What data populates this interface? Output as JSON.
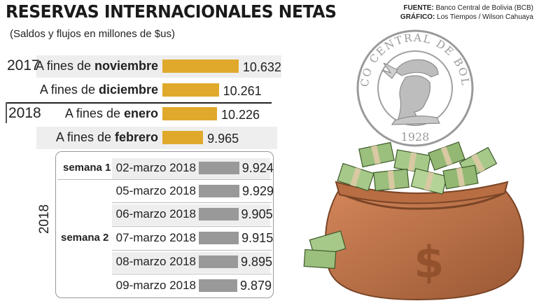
{
  "header": {
    "title": "RESERVAS INTERNACIONALES NETAS",
    "subtitle": "(Saldos y flujos en millones de $us)",
    "fuente_label": "FUENTE:",
    "fuente_value": "Banco Central de Bolivia (BCB)",
    "grafico_label": "GRÁFICO:",
    "grafico_value": "Los Tiempos / Wilson Cahuaya"
  },
  "seal": {
    "text": "BANCO CENTRAL DE BOLIVIA",
    "year": "1928"
  },
  "colors": {
    "monthly_bar": "#e0a92b",
    "daily_bar": "#999999",
    "band": "#eeeeee"
  },
  "chart_data": {
    "type": "bar",
    "orientation": "horizontal",
    "subtitle": "(Saldos y flujos en millones de $us)",
    "monthly": [
      {
        "year": "2017",
        "prefix": "A fines de",
        "month": "noviembre",
        "value": 10.632,
        "label": "10.632"
      },
      {
        "year": "",
        "prefix": "A fines de",
        "month": "diciembre",
        "value": 10.261,
        "label": "10.261"
      },
      {
        "year": "2018",
        "prefix": "A fines de",
        "month": "enero",
        "value": 10.226,
        "label": "10.226"
      },
      {
        "year": "",
        "prefix": "A fines de",
        "month": "febrero",
        "value": 9.965,
        "label": "9.965"
      }
    ],
    "daily_year": "2018",
    "daily": [
      {
        "week": "semana 1",
        "date": "02-marzo 2018",
        "value": 9.924,
        "label": "9.924"
      },
      {
        "week": "",
        "date": "05-marzo 2018",
        "value": 9.929,
        "label": "9.929"
      },
      {
        "week": "",
        "date": "06-marzo 2018",
        "value": 9.905,
        "label": "9.905"
      },
      {
        "week": "semana 2",
        "date": "07-marzo 2018",
        "value": 9.915,
        "label": "9.915"
      },
      {
        "week": "",
        "date": "08-marzo 2018",
        "value": 9.895,
        "label": "9.895"
      },
      {
        "week": "",
        "date": "09-marzo 2018",
        "value": 9.879,
        "label": "9.879"
      }
    ]
  }
}
